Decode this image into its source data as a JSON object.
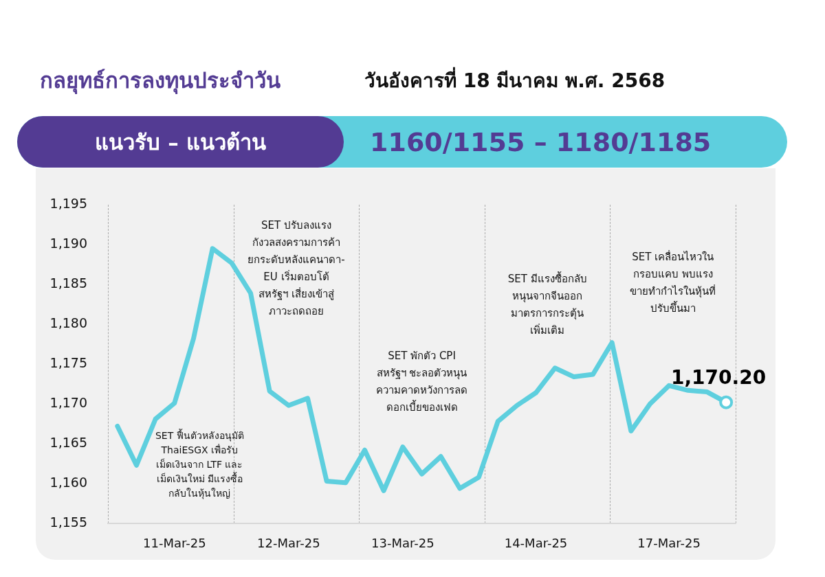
{
  "chart_data": {
    "type": "line",
    "title": "กลยุทธ์การลงทุนประจำวัน",
    "subtitle": "วันอังคารที่ 18 มีนาคม พ.ศ. 2568",
    "annotations": [
      "แนวรับ – แนวต้าน",
      "1160/1155 – 1180/1185",
      "SET ฟื้นตัวหลังอนุมัติ\nThaiESGX เพื่อรับ\nเม็ดเงินจาก LTF และ\nเม็ดเงินใหม่ มีแรงซื้อ\nกลับในหุ้นใหญ่",
      "SET ปรับลงแรง\nกังวลสงครามการค้า\nยกระดับหลังแคนาดา-\nEU เริ่มตอบโต้\nสหรัฐฯ เสี่ยงเข้าสู่\nภาวะถดถอย",
      "SET พักตัว CPI\nสหรัฐฯ ชะลอตัวหนุน\nความคาดหวังการลด\nดอกเบี้ยของเฟด",
      "SET มีแรงซื้อกลับ\nหนุนจากจีนออก\nมาตรการกระตุ้น\nเพิ่มเติม",
      "SET เคลื่อนไหวใน\nกรอบแคบ พบแรง\nขายทำกำไรในหุ้นที่\nปรับขึ้นมา"
    ],
    "categories": [
      null,
      null,
      null,
      "11-Mar-25",
      null,
      null,
      null,
      null,
      null,
      "12-Mar-25",
      null,
      null,
      null,
      null,
      null,
      "13-Mar-25",
      null,
      null,
      null,
      null,
      null,
      null,
      "14-Mar-25",
      null,
      null,
      null,
      null,
      null,
      null,
      "17-Mar-25",
      null,
      null,
      null
    ],
    "series": [
      {
        "color": "#5ecfde",
        "values": [
          1167.2,
          1162.3,
          1168.1,
          1170.1,
          1178.2,
          1189.5,
          1187.7,
          1183.9,
          1171.6,
          1169.8,
          1170.7,
          1160.3,
          1160.1,
          1164.2,
          1159.1,
          1164.6,
          1161.2,
          1163.4,
          1159.4,
          1160.8,
          1167.8,
          1169.8,
          1171.4,
          1174.5,
          1173.4,
          1173.7,
          1177.7,
          1166.6,
          1170.0,
          1172.3,
          1171.7,
          1171.5,
          1170.2
        ],
        "value_labels": [
          null,
          null,
          null,
          null,
          null,
          null,
          null,
          null,
          null,
          null,
          null,
          null,
          null,
          null,
          null,
          null,
          null,
          null,
          null,
          null,
          null,
          null,
          null,
          null,
          null,
          null,
          null,
          null,
          null,
          null,
          null,
          null,
          "1,170.20"
        ]
      }
    ],
    "ylim": [
      1155,
      1195
    ],
    "yticks": [
      {
        "value": 1155,
        "label": "1,155"
      },
      {
        "value": 1160,
        "label": "1,160"
      },
      {
        "value": 1165,
        "label": "1,165"
      },
      {
        "value": 1170,
        "label": "1,170"
      },
      {
        "value": 1175,
        "label": "1,175"
      },
      {
        "value": 1180,
        "label": "1,180"
      },
      {
        "value": 1185,
        "label": "1,185"
      },
      {
        "value": 1190,
        "label": "1,190"
      },
      {
        "value": 1195,
        "label": "1,195"
      }
    ],
    "grid": "x",
    "legend": false,
    "marker": "none",
    "line_style": "solid"
  }
}
